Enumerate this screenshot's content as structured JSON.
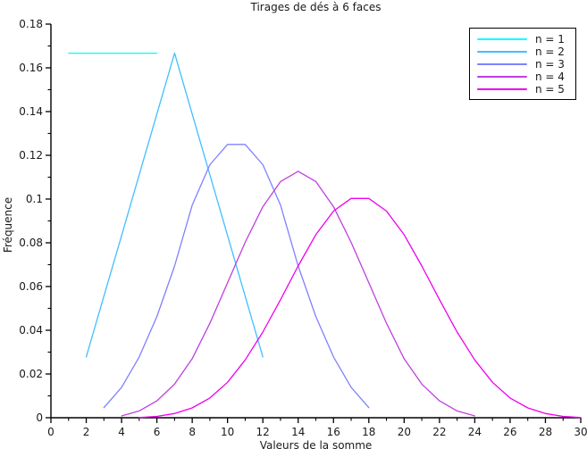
{
  "figure": {
    "background": "#ffffff",
    "text_color": "#1a1a1a",
    "axis_color": "#000000"
  },
  "chart_data": {
    "type": "line",
    "title": "Tirages de dés à 6 faces",
    "xlabel": "Valeurs de la somme",
    "ylabel": "Fréquence",
    "xlim": [
      0,
      30
    ],
    "ylim": [
      0,
      0.18
    ],
    "grid": false,
    "legend_position": "top-right",
    "xticks": {
      "values": [
        0,
        2,
        4,
        6,
        8,
        10,
        12,
        14,
        16,
        18,
        20,
        22,
        24,
        26,
        28,
        30
      ],
      "labels": [
        "0",
        "2",
        "4",
        "6",
        "8",
        "10",
        "12",
        "14",
        "16",
        "18",
        "20",
        "22",
        "24",
        "26",
        "28",
        "30"
      ],
      "minor_per_interval": 1
    },
    "yticks": {
      "values": [
        0,
        0.02,
        0.04,
        0.06,
        0.08,
        0.1,
        0.12,
        0.14,
        0.16,
        0.18
      ],
      "labels": [
        "0",
        "0.02",
        "0.04",
        "0.06",
        "0.08",
        "0.1",
        "0.12",
        "0.14",
        "0.16",
        "0.18"
      ],
      "minor_per_interval": 1
    },
    "series": [
      {
        "name": "n = 1",
        "color": "#00ffff",
        "x": [
          1,
          2,
          3,
          4,
          5,
          6
        ],
        "y": [
          0.1667,
          0.1667,
          0.1667,
          0.1667,
          0.1667,
          0.1667
        ]
      },
      {
        "name": "n = 2",
        "color": "#40bfff",
        "x": [
          2,
          3,
          4,
          5,
          6,
          7,
          8,
          9,
          10,
          11,
          12
        ],
        "y": [
          0.0278,
          0.0556,
          0.0833,
          0.1111,
          0.1389,
          0.1667,
          0.1389,
          0.1111,
          0.0833,
          0.0556,
          0.0278
        ]
      },
      {
        "name": "n = 3",
        "color": "#8080ff",
        "x": [
          3,
          4,
          5,
          6,
          7,
          8,
          9,
          10,
          11,
          12,
          13,
          14,
          15,
          16,
          17,
          18
        ],
        "y": [
          0.0046,
          0.0139,
          0.0278,
          0.0463,
          0.0694,
          0.0972,
          0.1157,
          0.125,
          0.125,
          0.1157,
          0.0972,
          0.0694,
          0.0463,
          0.0278,
          0.0139,
          0.0046
        ]
      },
      {
        "name": "n = 4",
        "color": "#bf40df",
        "x": [
          4,
          5,
          6,
          7,
          8,
          9,
          10,
          11,
          12,
          13,
          14,
          15,
          16,
          17,
          18,
          19,
          20,
          21,
          22,
          23,
          24
        ],
        "y": [
          0.0008,
          0.0031,
          0.0077,
          0.0154,
          0.027,
          0.0432,
          0.0617,
          0.0802,
          0.0965,
          0.108,
          0.1127,
          0.108,
          0.0965,
          0.0802,
          0.0617,
          0.0432,
          0.027,
          0.0154,
          0.0077,
          0.0031,
          0.0008
        ]
      },
      {
        "name": "n = 5",
        "color": "#ee00ee",
        "x": [
          5,
          6,
          7,
          8,
          9,
          10,
          11,
          12,
          13,
          14,
          15,
          16,
          17,
          18,
          19,
          20,
          21,
          22,
          23,
          24,
          25,
          26,
          27,
          28,
          29,
          30
        ],
        "y": [
          0.0001,
          0.0006,
          0.0019,
          0.0045,
          0.009,
          0.0162,
          0.0264,
          0.0392,
          0.054,
          0.0694,
          0.0837,
          0.0945,
          0.1003,
          0.1003,
          0.0945,
          0.0837,
          0.0694,
          0.054,
          0.0392,
          0.0264,
          0.0162,
          0.009,
          0.0045,
          0.0019,
          0.0006,
          0.0001
        ]
      }
    ]
  }
}
